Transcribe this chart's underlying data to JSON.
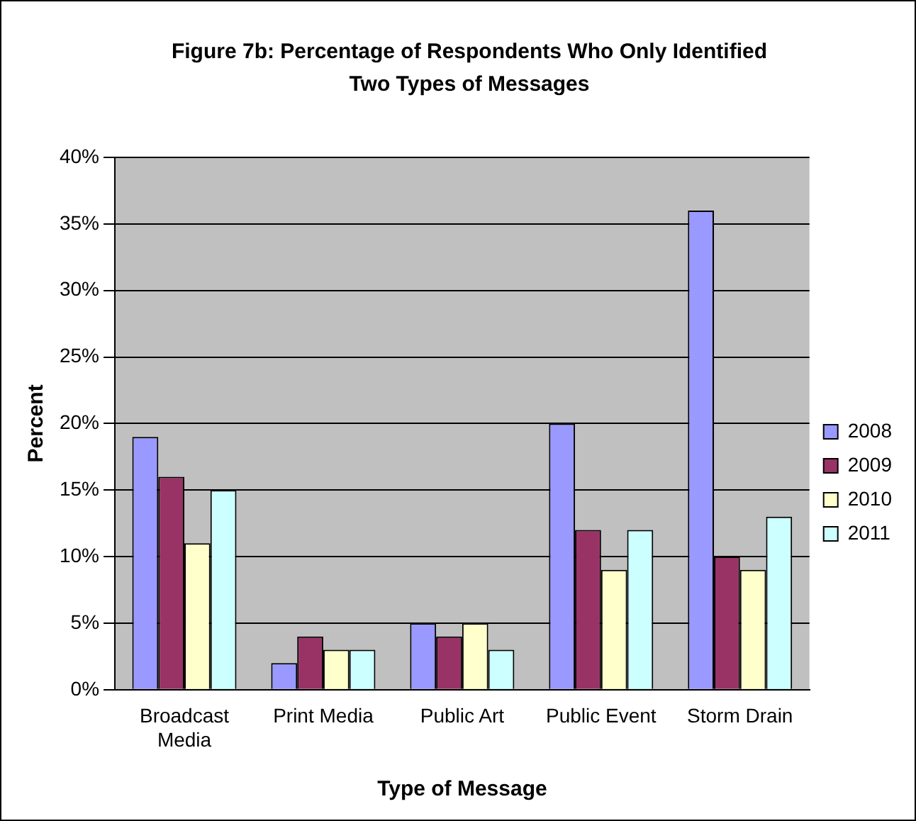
{
  "chart_data": {
    "type": "bar",
    "title": "Figure 7b:  Percentage of Respondents Who Only Identified Two Types of Messages",
    "xlabel": "Type of Message",
    "ylabel": "Percent",
    "categories": [
      "Broadcast Media",
      "Print Media",
      "Public Art",
      "Public Event",
      "Storm Drain"
    ],
    "series": [
      {
        "name": "2008",
        "color": "#9999ff",
        "values": [
          19,
          2,
          5,
          20,
          36
        ]
      },
      {
        "name": "2009",
        "color": "#993366",
        "values": [
          16,
          4,
          4,
          12,
          10
        ]
      },
      {
        "name": "2010",
        "color": "#ffffcc",
        "values": [
          11,
          3,
          5,
          9,
          9
        ]
      },
      {
        "name": "2011",
        "color": "#ccffff",
        "values": [
          15,
          3,
          3,
          12,
          13
        ]
      }
    ],
    "ylim": [
      0,
      40
    ],
    "yticks": [
      {
        "value": 0,
        "label": "0%"
      },
      {
        "value": 5,
        "label": "5%"
      },
      {
        "value": 10,
        "label": "10%"
      },
      {
        "value": 15,
        "label": "15%"
      },
      {
        "value": 20,
        "label": "20%"
      },
      {
        "value": 25,
        "label": "25%"
      },
      {
        "value": 30,
        "label": "30%"
      },
      {
        "value": 35,
        "label": "35%"
      },
      {
        "value": 40,
        "label": "40%"
      }
    ],
    "grid": "y",
    "legend": "right"
  }
}
